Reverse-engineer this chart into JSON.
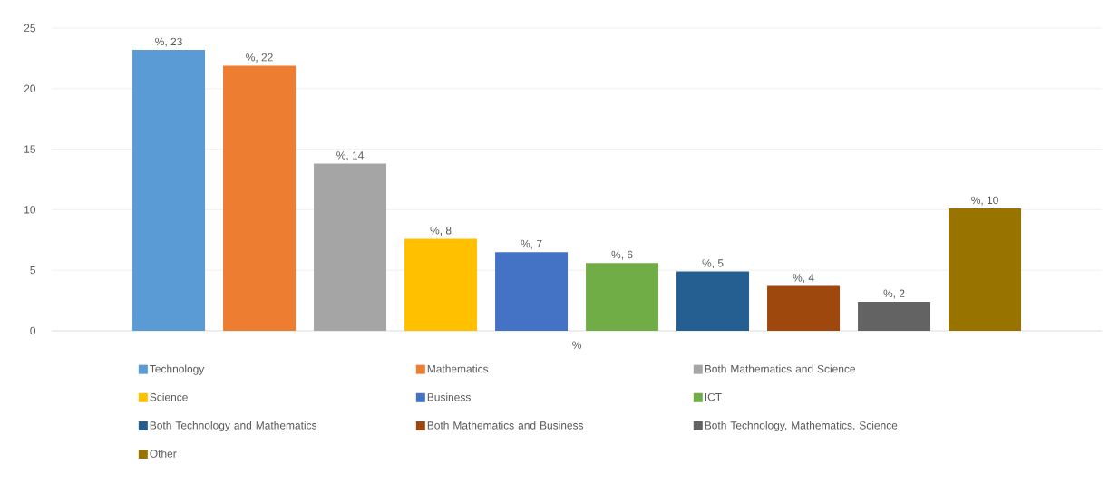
{
  "chart_data": {
    "type": "bar",
    "categories": [
      "%"
    ],
    "series": [
      {
        "name": "Technology",
        "color": "#5b9bd5",
        "values": [
          23.2
        ],
        "value_labels": [
          "%, 23"
        ]
      },
      {
        "name": "Mathematics",
        "color": "#ed7d31",
        "values": [
          21.9
        ],
        "value_labels": [
          "%, 22"
        ]
      },
      {
        "name": "Both Mathematics and Science",
        "color": "#a5a5a5",
        "values": [
          13.8
        ],
        "value_labels": [
          "%, 14"
        ]
      },
      {
        "name": "Science",
        "color": "#ffc000",
        "values": [
          7.6
        ],
        "value_labels": [
          "%, 8"
        ]
      },
      {
        "name": "Business",
        "color": "#4472c4",
        "values": [
          6.5
        ],
        "value_labels": [
          "%, 7"
        ]
      },
      {
        "name": "ICT",
        "color": "#70ad47",
        "values": [
          5.6
        ],
        "value_labels": [
          "%, 6"
        ]
      },
      {
        "name": "Both Technology and Mathematics",
        "color": "#255e91",
        "values": [
          4.9
        ],
        "value_labels": [
          "%, 5"
        ]
      },
      {
        "name": "Both Mathematics and Business",
        "color": "#9e480e",
        "values": [
          3.7
        ],
        "value_labels": [
          "%, 4"
        ]
      },
      {
        "name": "Both Technology, Mathematics, Science",
        "color": "#636363",
        "values": [
          2.4
        ],
        "value_labels": [
          "%, 2"
        ]
      },
      {
        "name": "Other",
        "color": "#997300",
        "values": [
          10.1
        ],
        "value_labels": [
          "%, 10"
        ]
      }
    ],
    "ylim": [
      0,
      25
    ],
    "yticks": [
      0,
      5,
      10,
      15,
      20,
      25
    ],
    "grid": "y",
    "legend": "bottom"
  }
}
